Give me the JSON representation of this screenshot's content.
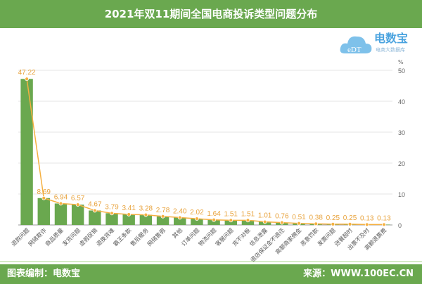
{
  "header": {
    "title": "2021年双11期间全国电商投诉类型问题分布"
  },
  "logo": {
    "name": "电数宝",
    "tagline": "电商大数据库",
    "unit": "%"
  },
  "footer": {
    "left": "图表编制：电数宝",
    "right": "来源：WWW.100EC.CN"
  },
  "chart_data": {
    "type": "bar+line",
    "categories": [
      "退款问题",
      "网络欺诈",
      "商品质量",
      "发货问题",
      "虚假促销",
      "退换货难",
      "霸王条款",
      "售后服务",
      "网络售假",
      "其他",
      "订单问题",
      "物流问题",
      "客服问题",
      "货不对板",
      "信息泄露",
      "退店保证金不退还",
      "高额商家佣金",
      "恶意罚款",
      "发票问题",
      "送餐超时",
      "出票不及时",
      "高额退票费"
    ],
    "values": [
      47.22,
      8.69,
      6.94,
      6.57,
      4.67,
      3.79,
      3.41,
      3.28,
      2.78,
      2.4,
      2.02,
      1.64,
      1.51,
      1.51,
      1.01,
      0.76,
      0.51,
      0.38,
      0.25,
      0.25,
      0.13,
      0.13
    ],
    "ylim": [
      0,
      50
    ],
    "yticks": [
      0,
      10,
      20,
      30,
      40,
      50
    ],
    "yaxis_position": "right",
    "ylabel": "%",
    "bar_color": "#6aa84f",
    "line_color": "#f5b041",
    "grid": true
  }
}
